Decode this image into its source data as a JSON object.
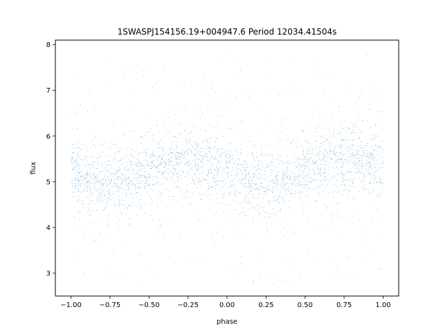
{
  "chart_data": {
    "type": "scatter",
    "title": "1SWASPJ154156.19+004947.6 Period 12034.41504s",
    "xlabel": "phase",
    "ylabel": "flux",
    "xlim": [
      -1.1,
      1.1
    ],
    "ylim": [
      2.5,
      8.1
    ],
    "x_ticks": [
      -1.0,
      -0.75,
      -0.5,
      -0.25,
      0.0,
      0.25,
      0.5,
      0.75,
      1.0
    ],
    "x_tick_labels": [
      "−1.00",
      "−0.75",
      "−0.50",
      "−0.25",
      "0.00",
      "0.25",
      "0.50",
      "0.75",
      "1.00"
    ],
    "y_ticks": [
      3,
      4,
      5,
      6,
      7,
      8
    ],
    "y_tick_labels": [
      "3",
      "4",
      "5",
      "6",
      "7",
      "8"
    ],
    "grid": false,
    "marker_color": "#1f77b4",
    "x_range": [
      -1.0,
      1.0
    ],
    "flux_range": [
      2.75,
      7.78
    ],
    "model": {
      "kind": "sinusoid",
      "mean_flux": 5.25,
      "amplitude": 0.25,
      "period_in_phase": 1.0,
      "peak_phases": [
        -0.25,
        0.75
      ],
      "trough_phases": [
        -0.75,
        0.25
      ],
      "core_scatter": 0.33
    },
    "n_points": 60000
  }
}
